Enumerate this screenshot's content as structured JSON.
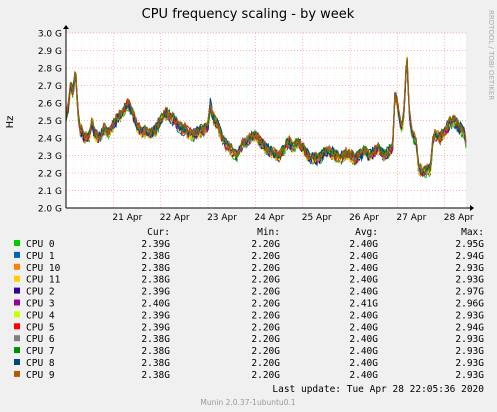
{
  "chart_data": {
    "type": "line",
    "title": "CPU frequency scaling - by week",
    "ylabel": "Hz",
    "side_label": "RRDTOOL / TOBI OETIKER",
    "ylim": [
      2.0,
      3.0
    ],
    "y_ticks": [
      {
        "value": 2.0,
        "label": "2.0 G"
      },
      {
        "value": 2.1,
        "label": "2.1 G"
      },
      {
        "value": 2.2,
        "label": "2.2 G"
      },
      {
        "value": 2.3,
        "label": "2.3 G"
      },
      {
        "value": 2.4,
        "label": "2.4 G"
      },
      {
        "value": 2.5,
        "label": "2.5 G"
      },
      {
        "value": 2.6,
        "label": "2.6 G"
      },
      {
        "value": 2.7,
        "label": "2.7 G"
      },
      {
        "value": 2.8,
        "label": "2.8 G"
      },
      {
        "value": 2.9,
        "label": "2.9 G"
      },
      {
        "value": 3.0,
        "label": "3.0 G"
      }
    ],
    "x_ticks": [
      {
        "value": 1.0,
        "label": "21 Apr"
      },
      {
        "value": 2.0,
        "label": "22 Apr"
      },
      {
        "value": 3.0,
        "label": "23 Apr"
      },
      {
        "value": 4.0,
        "label": "24 Apr"
      },
      {
        "value": 5.0,
        "label": "25 Apr"
      },
      {
        "value": 6.0,
        "label": "26 Apr"
      },
      {
        "value": 7.0,
        "label": "27 Apr"
      },
      {
        "value": 8.0,
        "label": "28 Apr"
      }
    ],
    "x_range": [
      0.0,
      8.45
    ],
    "grid": true,
    "legend_headers": {
      "cur": "Cur:",
      "min": "Min:",
      "avg": "Avg:",
      "max": "Max:"
    },
    "profile": [
      [
        0.0,
        2.52
      ],
      [
        0.05,
        2.58
      ],
      [
        0.1,
        2.7
      ],
      [
        0.15,
        2.66
      ],
      [
        0.2,
        2.8
      ],
      [
        0.25,
        2.55
      ],
      [
        0.3,
        2.45
      ],
      [
        0.4,
        2.4
      ],
      [
        0.5,
        2.42
      ],
      [
        0.55,
        2.5
      ],
      [
        0.6,
        2.42
      ],
      [
        0.7,
        2.4
      ],
      [
        0.8,
        2.45
      ],
      [
        0.9,
        2.43
      ],
      [
        1.0,
        2.48
      ],
      [
        1.1,
        2.52
      ],
      [
        1.2,
        2.55
      ],
      [
        1.3,
        2.6
      ],
      [
        1.4,
        2.55
      ],
      [
        1.5,
        2.47
      ],
      [
        1.6,
        2.43
      ],
      [
        1.7,
        2.44
      ],
      [
        1.8,
        2.43
      ],
      [
        1.9,
        2.45
      ],
      [
        2.0,
        2.5
      ],
      [
        2.1,
        2.55
      ],
      [
        2.2,
        2.52
      ],
      [
        2.3,
        2.5
      ],
      [
        2.4,
        2.46
      ],
      [
        2.5,
        2.45
      ],
      [
        2.6,
        2.43
      ],
      [
        2.7,
        2.42
      ],
      [
        2.8,
        2.44
      ],
      [
        2.9,
        2.45
      ],
      [
        3.0,
        2.47
      ],
      [
        3.05,
        2.6
      ],
      [
        3.1,
        2.52
      ],
      [
        3.2,
        2.48
      ],
      [
        3.3,
        2.4
      ],
      [
        3.4,
        2.36
      ],
      [
        3.5,
        2.33
      ],
      [
        3.6,
        2.3
      ],
      [
        3.7,
        2.35
      ],
      [
        3.8,
        2.38
      ],
      [
        3.9,
        2.4
      ],
      [
        4.0,
        2.42
      ],
      [
        4.1,
        2.38
      ],
      [
        4.2,
        2.35
      ],
      [
        4.3,
        2.33
      ],
      [
        4.4,
        2.31
      ],
      [
        4.5,
        2.3
      ],
      [
        4.6,
        2.33
      ],
      [
        4.7,
        2.38
      ],
      [
        4.8,
        2.35
      ],
      [
        4.9,
        2.38
      ],
      [
        5.0,
        2.34
      ],
      [
        5.1,
        2.3
      ],
      [
        5.2,
        2.29
      ],
      [
        5.3,
        2.28
      ],
      [
        5.4,
        2.3
      ],
      [
        5.5,
        2.33
      ],
      [
        5.6,
        2.32
      ],
      [
        5.7,
        2.3
      ],
      [
        5.8,
        2.29
      ],
      [
        5.9,
        2.31
      ],
      [
        6.0,
        2.3
      ],
      [
        6.1,
        2.28
      ],
      [
        6.2,
        2.3
      ],
      [
        6.3,
        2.33
      ],
      [
        6.4,
        2.3
      ],
      [
        6.5,
        2.32
      ],
      [
        6.6,
        2.35
      ],
      [
        6.7,
        2.3
      ],
      [
        6.8,
        2.32
      ],
      [
        6.9,
        2.35
      ],
      [
        6.95,
        2.65
      ],
      [
        7.0,
        2.6
      ],
      [
        7.05,
        2.5
      ],
      [
        7.1,
        2.45
      ],
      [
        7.15,
        2.6
      ],
      [
        7.2,
        2.88
      ],
      [
        7.25,
        2.55
      ],
      [
        7.3,
        2.45
      ],
      [
        7.35,
        2.4
      ],
      [
        7.4,
        2.38
      ],
      [
        7.45,
        2.22
      ],
      [
        7.55,
        2.21
      ],
      [
        7.65,
        2.22
      ],
      [
        7.7,
        2.22
      ],
      [
        7.75,
        2.4
      ],
      [
        7.8,
        2.42
      ],
      [
        7.9,
        2.4
      ],
      [
        8.0,
        2.44
      ],
      [
        8.1,
        2.48
      ],
      [
        8.2,
        2.5
      ],
      [
        8.3,
        2.46
      ],
      [
        8.4,
        2.44
      ],
      [
        8.45,
        2.38
      ]
    ],
    "series": [
      {
        "name": "CPU 0",
        "color": "#00cc00",
        "cur": "2.39G",
        "min": "2.20G",
        "avg": "2.40G",
        "max": "2.95G"
      },
      {
        "name": "CPU 1",
        "color": "#0066b3",
        "cur": "2.38G",
        "min": "2.20G",
        "avg": "2.40G",
        "max": "2.94G"
      },
      {
        "name": "CPU 10",
        "color": "#ff8000",
        "cur": "2.38G",
        "min": "2.20G",
        "avg": "2.40G",
        "max": "2.93G"
      },
      {
        "name": "CPU 11",
        "color": "#ffcc00",
        "cur": "2.38G",
        "min": "2.20G",
        "avg": "2.40G",
        "max": "2.93G"
      },
      {
        "name": "CPU 2",
        "color": "#330099",
        "cur": "2.39G",
        "min": "2.20G",
        "avg": "2.40G",
        "max": "2.97G"
      },
      {
        "name": "CPU 3",
        "color": "#990099",
        "cur": "2.40G",
        "min": "2.20G",
        "avg": "2.41G",
        "max": "2.96G"
      },
      {
        "name": "CPU 4",
        "color": "#ccff00",
        "cur": "2.39G",
        "min": "2.20G",
        "avg": "2.40G",
        "max": "2.93G"
      },
      {
        "name": "CPU 5",
        "color": "#ff0000",
        "cur": "2.39G",
        "min": "2.20G",
        "avg": "2.40G",
        "max": "2.94G"
      },
      {
        "name": "CPU 6",
        "color": "#808080",
        "cur": "2.38G",
        "min": "2.20G",
        "avg": "2.40G",
        "max": "2.93G"
      },
      {
        "name": "CPU 7",
        "color": "#008f00",
        "cur": "2.38G",
        "min": "2.20G",
        "avg": "2.40G",
        "max": "2.93G"
      },
      {
        "name": "CPU 8",
        "color": "#00487d",
        "cur": "2.38G",
        "min": "2.20G",
        "avg": "2.40G",
        "max": "2.93G"
      },
      {
        "name": "CPU 9",
        "color": "#b35a00",
        "cur": "2.38G",
        "min": "2.20G",
        "avg": "2.40G",
        "max": "2.93G"
      }
    ],
    "last_update": "Last update: Tue Apr 28 22:05:36 2020",
    "footer": "Munin 2.0.37-1ubuntu0.1"
  }
}
